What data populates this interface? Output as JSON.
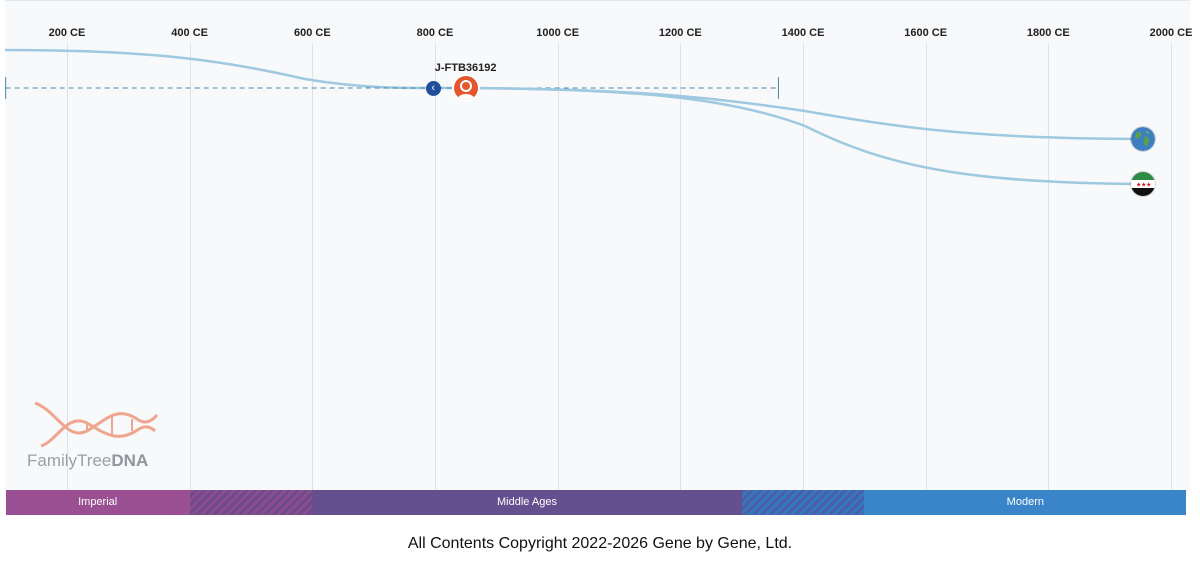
{
  "timeline": {
    "axis_labels": [
      "200 CE",
      "400 CE",
      "600 CE",
      "800 CE",
      "1000 CE",
      "1200 CE",
      "1400 CE",
      "1600 CE",
      "1800 CE",
      "2000 CE"
    ],
    "axis_years": [
      200,
      400,
      600,
      800,
      1000,
      1200,
      1400,
      1600,
      1800,
      2000
    ]
  },
  "haplogroup": {
    "name": "J-FTB36192",
    "estimated_year": 850,
    "range_start_year": 100,
    "range_end_year": 1360
  },
  "branches": [
    {
      "icon": "globe-icon",
      "end_year": 1955
    },
    {
      "icon": "flag-icon",
      "end_year": 1955
    }
  ],
  "eras": [
    {
      "label": "Imperial",
      "start": 100,
      "end": 400,
      "color": "#9b4f93"
    },
    {
      "label": "",
      "start": 400,
      "end": 600,
      "color": "hatch-imperial"
    },
    {
      "label": "Middle Ages",
      "start": 600,
      "end": 1300,
      "color": "#654f8e"
    },
    {
      "label": "",
      "start": 1300,
      "end": 1500,
      "color": "hatch-modern"
    },
    {
      "label": "Modern",
      "start": 1500,
      "end": 2025,
      "color": "#3a84c9"
    }
  ],
  "logo": {
    "text_part1": "FamilyTree",
    "text_part2": "DNA"
  },
  "footer": {
    "copyright": "All Contents Copyright 2022-2026 Gene by Gene, Ltd."
  },
  "colors": {
    "line": "#9ec9e0",
    "avatar": "#e4572e",
    "back_button": "#1f4f9a"
  }
}
